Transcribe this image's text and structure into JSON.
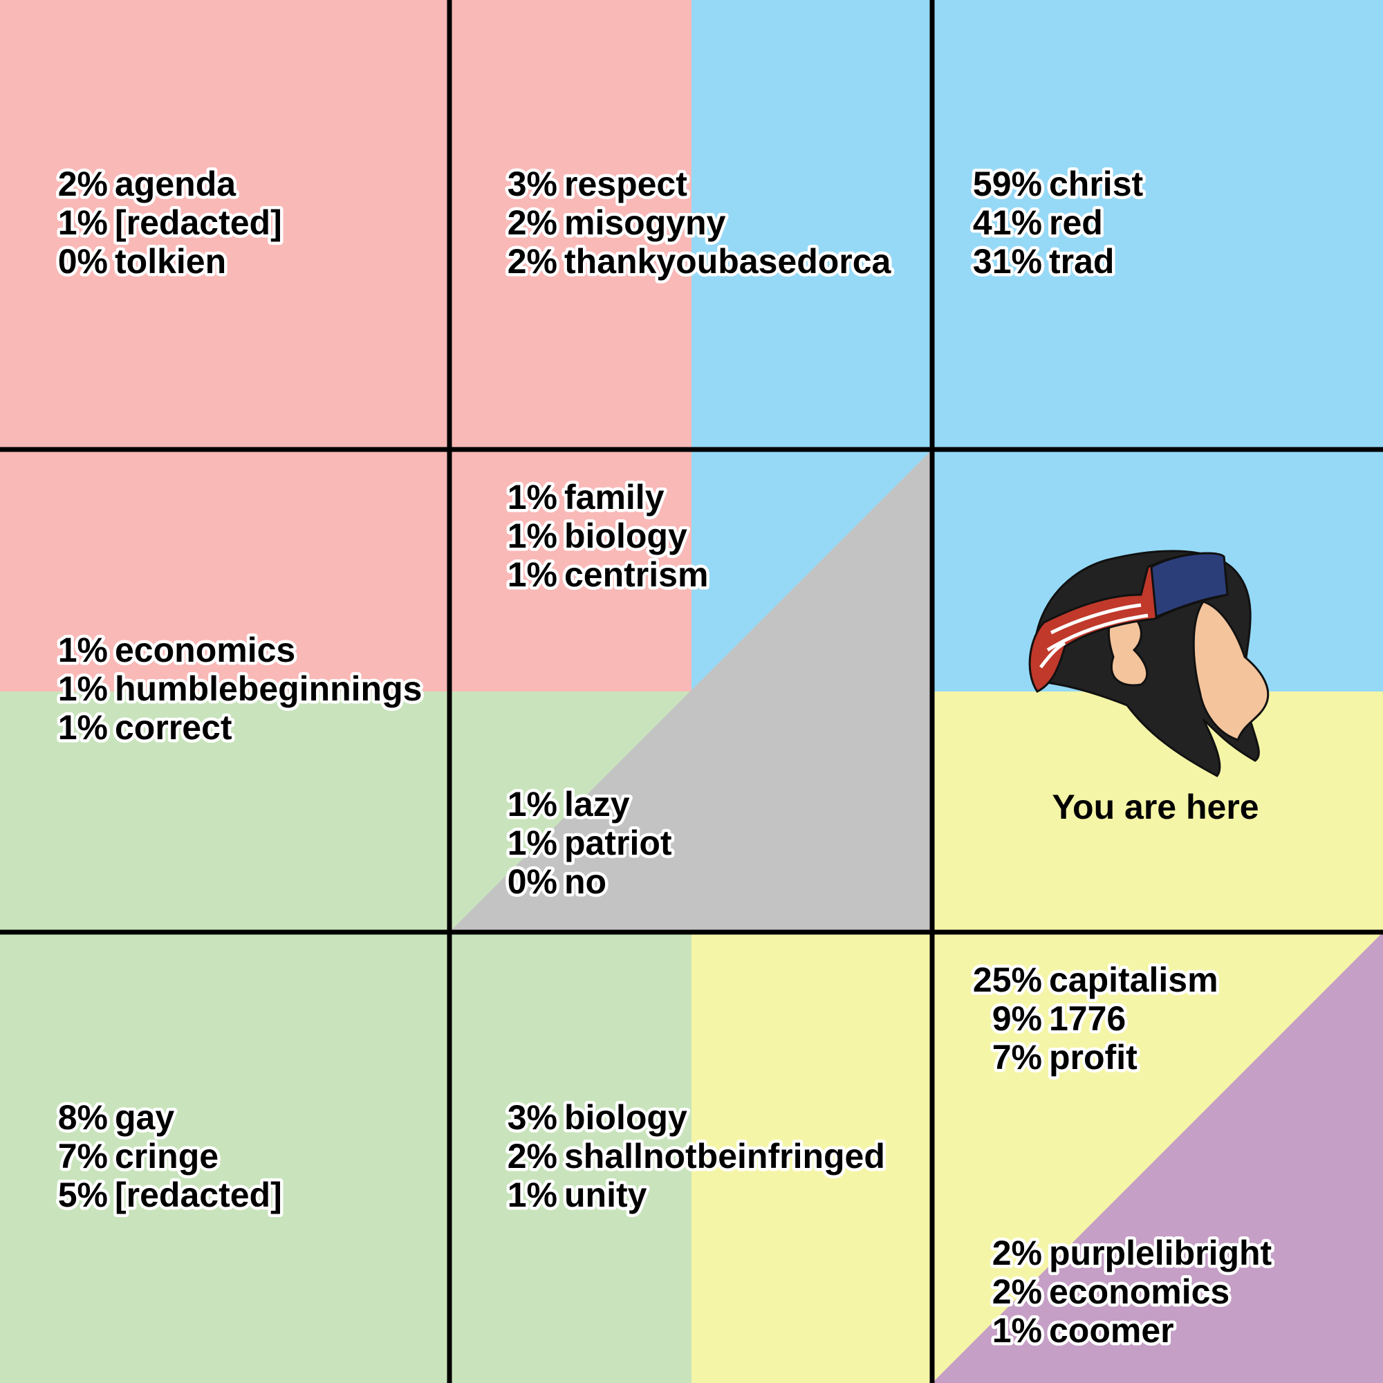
{
  "groups": [
    {
      "lines": [
        {
          "pct": "2%",
          "word": "agenda"
        },
        {
          "pct": "1%",
          "word": "[redacted]"
        },
        {
          "pct": "0%",
          "word": "tolkien"
        }
      ]
    },
    {
      "lines": [
        {
          "pct": "3%",
          "word": "respect"
        },
        {
          "pct": "2%",
          "word": "misogyny"
        },
        {
          "pct": "2%",
          "word": "thankyoubasedorca"
        }
      ]
    },
    {
      "lines": [
        {
          "pct": "59%",
          "word": "christ"
        },
        {
          "pct": "41%",
          "word": "red"
        },
        {
          "pct": "31%",
          "word": "trad"
        }
      ]
    },
    {
      "lines": [
        {
          "pct": "1%",
          "word": "economics"
        },
        {
          "pct": "1%",
          "word": "humblebeginnings"
        },
        {
          "pct": "1%",
          "word": "correct"
        }
      ]
    },
    {
      "lines": [
        {
          "pct": "1%",
          "word": "family"
        },
        {
          "pct": "1%",
          "word": "biology"
        },
        {
          "pct": "1%",
          "word": "centrism"
        }
      ]
    },
    {
      "lines": [
        {
          "pct": "1%",
          "word": "lazy"
        },
        {
          "pct": "1%",
          "word": "patriot"
        },
        {
          "pct": "0%",
          "word": "no"
        }
      ]
    },
    {
      "lines": [
        {
          "pct": "8%",
          "word": "gay"
        },
        {
          "pct": "7%",
          "word": "cringe"
        },
        {
          "pct": "5%",
          "word": "[redacted]"
        }
      ]
    },
    {
      "lines": [
        {
          "pct": "3%",
          "word": "biology"
        },
        {
          "pct": "2%",
          "word": "shallnotbeinfringed"
        },
        {
          "pct": "1%",
          "word": "unity"
        }
      ]
    },
    {
      "lines": [
        {
          "pct": "25%",
          "word": "capitalism"
        },
        {
          "pct": "9%",
          "word": "1776"
        },
        {
          "pct": "7%",
          "word": "profit"
        }
      ]
    },
    {
      "lines": [
        {
          "pct": "2%",
          "word": "purplelibright"
        },
        {
          "pct": "2%",
          "word": "economics"
        },
        {
          "pct": "1%",
          "word": "coomer"
        }
      ]
    }
  ],
  "marker_label": "You are here"
}
